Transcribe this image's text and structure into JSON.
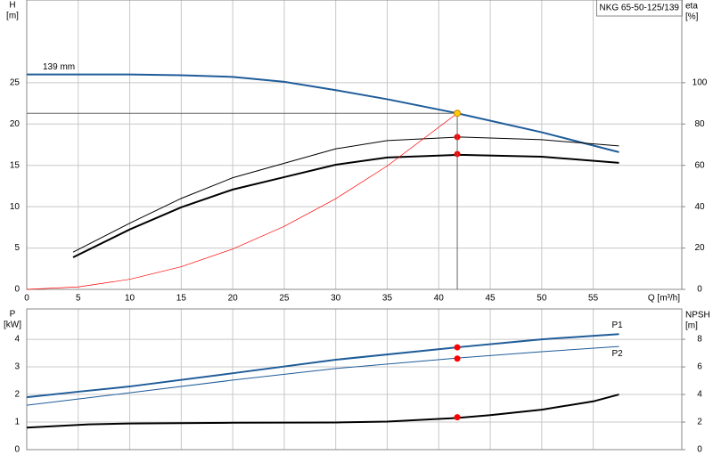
{
  "chart_data": [
    {
      "type": "line",
      "title": "NKG 65-50-125/139",
      "x_label": "Q [m³/h]",
      "y_label": "H",
      "y_unit": "[m]",
      "y2_label": "eta",
      "y2_unit": "[%]",
      "xlim": [
        0,
        63.6
      ],
      "xticks": [
        0,
        5,
        10,
        15,
        20,
        25,
        30,
        35,
        40,
        45,
        50,
        55
      ],
      "ylim": [
        0,
        35
      ],
      "yticks": [
        0,
        5,
        10,
        15,
        20,
        25
      ],
      "y2lim": [
        0,
        140
      ],
      "y2ticks": [
        0,
        20,
        40,
        60,
        80,
        100
      ],
      "grid": true,
      "series": [
        {
          "name": "139 mm",
          "color": "#1f5c99",
          "width": 2,
          "x": [
            0,
            10,
            15,
            20,
            25,
            30,
            35,
            41.8,
            50,
            57.5
          ],
          "values": [
            26.0,
            26.0,
            25.9,
            25.7,
            25.1,
            24.1,
            23.0,
            21.3,
            19.0,
            16.6
          ]
        },
        {
          "color": "#000000",
          "width": 1,
          "axis": "y2",
          "x": [
            4.5,
            10,
            15,
            20,
            25,
            30,
            35,
            42,
            50,
            57.5
          ],
          "values": [
            18,
            32,
            44,
            54,
            61,
            68,
            72,
            73.7,
            72.4,
            69.4
          ]
        },
        {
          "color": "#000000",
          "width": 2,
          "axis": "y2",
          "x": [
            4.5,
            10,
            15,
            20,
            25,
            30,
            35,
            42,
            50,
            57.5
          ],
          "values": [
            15.5,
            29,
            39.7,
            48.3,
            54.3,
            60.3,
            63.8,
            65.1,
            64.2,
            61.2
          ]
        },
        {
          "color": "#ff0000",
          "width": 0.7,
          "x": [
            0,
            5,
            10,
            15,
            20,
            25,
            30,
            35,
            41.8
          ],
          "values": [
            0,
            0.3,
            1.22,
            2.74,
            4.88,
            7.62,
            10.97,
            14.93,
            21.3
          ]
        }
      ],
      "markers": [
        {
          "x": 41.8,
          "y": 73.7,
          "axis": "y2",
          "color": "#ff0000"
        },
        {
          "x": 41.8,
          "y": 65.5,
          "axis": "y2",
          "color": "#ff0000"
        },
        {
          "x": 41.8,
          "y": 21.3,
          "color": "#ffcc00",
          "crosshair": true
        }
      ]
    },
    {
      "type": "line",
      "y_label": "P",
      "y_unit": "[kW]",
      "y2_label": "NPSH",
      "y2_unit": "[m]",
      "xlim": [
        0,
        63.6
      ],
      "ylim": [
        0,
        5.1
      ],
      "yticks": [
        0,
        1,
        2,
        3,
        4
      ],
      "y2lim": [
        0,
        10.2
      ],
      "y2ticks": [
        0,
        2,
        4,
        6,
        8
      ],
      "grid": true,
      "series": [
        {
          "name": "P1",
          "color": "#1f5c99",
          "width": 2,
          "x": [
            0,
            5,
            10,
            20,
            30,
            41.8,
            50,
            57.5
          ],
          "values": [
            1.9,
            2.1,
            2.29,
            2.77,
            3.26,
            3.71,
            4.0,
            4.19
          ]
        },
        {
          "name": "P2",
          "color": "#1f5c99",
          "width": 1,
          "x": [
            0,
            10,
            20,
            30,
            41.8,
            50,
            57.5
          ],
          "values": [
            1.61,
            2.06,
            2.52,
            2.94,
            3.32,
            3.55,
            3.74
          ]
        },
        {
          "color": "#000000",
          "width": 2,
          "axis": "y2",
          "x": [
            0,
            6,
            10,
            20,
            30,
            35,
            41.8,
            45,
            50,
            55,
            57.5
          ],
          "values": [
            1.6,
            1.83,
            1.9,
            1.95,
            1.97,
            2.03,
            2.3,
            2.5,
            2.9,
            3.5,
            4.0
          ]
        }
      ],
      "markers": [
        {
          "x": 41.8,
          "y": 3.71,
          "color": "#ff0000"
        },
        {
          "x": 41.8,
          "y": 3.3,
          "color": "#ff0000"
        },
        {
          "x": 41.8,
          "y": 2.35,
          "axis": "y2",
          "color": "#ff0000"
        }
      ]
    }
  ]
}
